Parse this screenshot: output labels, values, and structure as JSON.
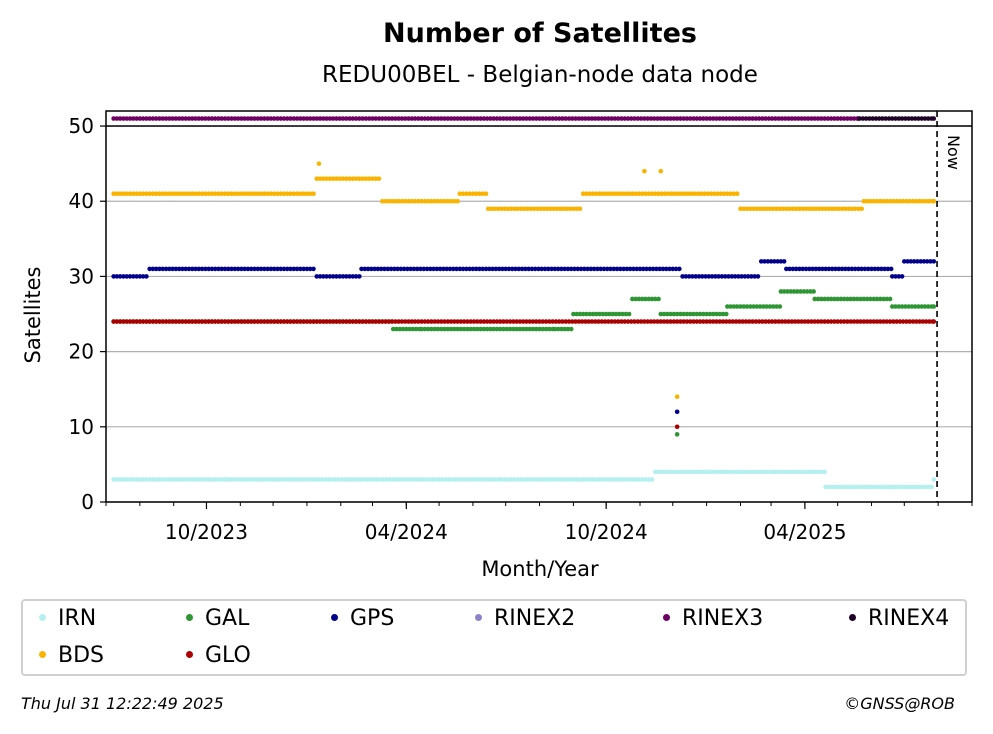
{
  "chart_data": {
    "type": "scatter",
    "title": "Number of Satellites",
    "subtitle": "REDU00BEL - Belgian-node data node",
    "xlabel": "Month/Year",
    "ylabel": "Satellites",
    "x_range": [
      "2023-07-01",
      "2025-09-01"
    ],
    "ylim": [
      0,
      52
    ],
    "y_ticks": [
      0,
      10,
      20,
      30,
      40,
      50
    ],
    "x_tick_labels": [
      "10/2023",
      "04/2024",
      "10/2024",
      "04/2025"
    ],
    "x_tick_dates": [
      "2023-10-01",
      "2024-04-01",
      "2024-10-01",
      "2025-04-01"
    ],
    "grid": "horizontal",
    "now_marker": {
      "label": "Now",
      "date": "2025-07-31"
    },
    "legend_placement": "bottom",
    "series": [
      {
        "name": "IRN",
        "color": "#b4f0f0",
        "segments": [
          [
            "2023-07-08",
            3
          ],
          [
            "2023-10-20",
            3
          ],
          [
            "2024-02-10",
            3
          ],
          [
            "2024-06-15",
            3
          ],
          [
            "2024-11-15",
            4
          ],
          [
            "2025-03-05",
            4
          ],
          [
            "2025-04-20",
            2
          ],
          [
            "2025-06-20",
            2
          ],
          [
            "2025-07-28",
            3
          ]
        ]
      },
      {
        "name": "GAL",
        "color": "#2e9632",
        "segments": [
          [
            "2023-07-08",
            24
          ],
          [
            "2023-08-01",
            24
          ],
          [
            "2024-03-20",
            23
          ],
          [
            "2024-04-15",
            23
          ],
          [
            "2024-06-20",
            23
          ],
          [
            "2024-08-15",
            23
          ],
          [
            "2024-09-01",
            25
          ],
          [
            "2024-10-25",
            27
          ],
          [
            "2024-11-20",
            25
          ],
          [
            "2025-01-20",
            26
          ],
          [
            "2025-03-10",
            28
          ],
          [
            "2025-04-10",
            27
          ],
          [
            "2025-06-20",
            26
          ],
          [
            "2025-07-28",
            26
          ]
        ]
      },
      {
        "name": "GPS",
        "color": "#00008c",
        "segments": [
          [
            "2023-07-08",
            30
          ],
          [
            "2023-08-10",
            31
          ],
          [
            "2024-01-10",
            30
          ],
          [
            "2024-02-20",
            31
          ],
          [
            "2024-07-01",
            31
          ],
          [
            "2024-12-10",
            30
          ],
          [
            "2025-02-20",
            32
          ],
          [
            "2025-03-15",
            31
          ],
          [
            "2025-06-20",
            30
          ],
          [
            "2025-07-01",
            32
          ],
          [
            "2025-07-28",
            32
          ]
        ]
      },
      {
        "name": "RINEX2",
        "color": "#8c82c8",
        "segments": []
      },
      {
        "name": "RINEX3",
        "color": "#6e0064",
        "segments": [
          [
            "2023-07-08",
            51
          ],
          [
            "2025-05-20",
            51
          ]
        ]
      },
      {
        "name": "RINEX4",
        "color": "#1e0028",
        "segments": [
          [
            "2025-05-21",
            51
          ],
          [
            "2025-07-28",
            51
          ]
        ]
      },
      {
        "name": "BDS",
        "color": "#fab400",
        "segments": [
          [
            "2023-07-08",
            41
          ],
          [
            "2024-01-10",
            43
          ],
          [
            "2024-03-10",
            40
          ],
          [
            "2024-05-20",
            41
          ],
          [
            "2024-06-15",
            39
          ],
          [
            "2024-09-10",
            41
          ],
          [
            "2025-02-01",
            39
          ],
          [
            "2025-05-25",
            40
          ],
          [
            "2025-07-28",
            40
          ]
        ]
      },
      {
        "name": "GLO",
        "color": "#aa0000",
        "segments": [
          [
            "2023-07-08",
            24
          ],
          [
            "2025-07-28",
            24
          ]
        ]
      }
    ],
    "outliers": [
      {
        "series": "BDS",
        "date": "2024-12-05",
        "value": 14
      },
      {
        "series": "GPS",
        "date": "2024-12-05",
        "value": 12
      },
      {
        "series": "GLO",
        "date": "2024-12-05",
        "value": 10
      },
      {
        "series": "GAL",
        "date": "2024-12-05",
        "value": 9
      },
      {
        "series": "BDS",
        "date": "2024-01-12",
        "value": 45
      },
      {
        "series": "BDS",
        "date": "2024-11-05",
        "value": 44
      },
      {
        "series": "BDS",
        "date": "2024-11-20",
        "value": 44
      }
    ]
  },
  "legend": {
    "items": [
      {
        "name": "IRN",
        "color": "#b4f0f0"
      },
      {
        "name": "GAL",
        "color": "#2e9632"
      },
      {
        "name": "GPS",
        "color": "#00008c"
      },
      {
        "name": "RINEX2",
        "color": "#8c82c8"
      },
      {
        "name": "RINEX3",
        "color": "#6e0064"
      },
      {
        "name": "RINEX4",
        "color": "#1e0028"
      },
      {
        "name": "BDS",
        "color": "#fab400"
      },
      {
        "name": "GLO",
        "color": "#aa0000"
      }
    ]
  },
  "footer": {
    "timestamp": "Thu Jul 31 12:22:49 2025",
    "copyright": "©GNSS@ROB"
  }
}
